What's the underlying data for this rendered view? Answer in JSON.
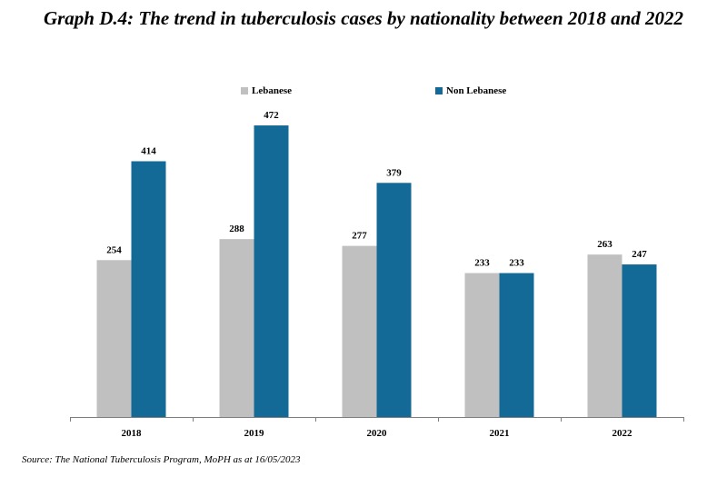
{
  "title": "Graph D.4: The trend in tuberculosis cases by nationality between 2018 and 2022",
  "source": "Source: The National Tuberculosis Program, MoPH as at 16/05/2023",
  "colors": {
    "lebanese": "#c0c0c0",
    "non_lebanese": "#146a96",
    "axis": "#7f7f7f"
  },
  "chart_data": {
    "type": "bar",
    "title": "Graph D.4: The trend in tuberculosis cases by nationality between 2018 and 2022",
    "xlabel": "",
    "ylabel": "",
    "categories": [
      "2018",
      "2019",
      "2020",
      "2021",
      "2022"
    ],
    "series": [
      {
        "name": "Lebanese",
        "values": [
          254,
          288,
          277,
          233,
          263
        ]
      },
      {
        "name": "Non Lebanese",
        "values": [
          414,
          472,
          379,
          233,
          247
        ]
      }
    ],
    "ylim": [
      0,
      500
    ],
    "grid": false,
    "legend": "top-center"
  }
}
